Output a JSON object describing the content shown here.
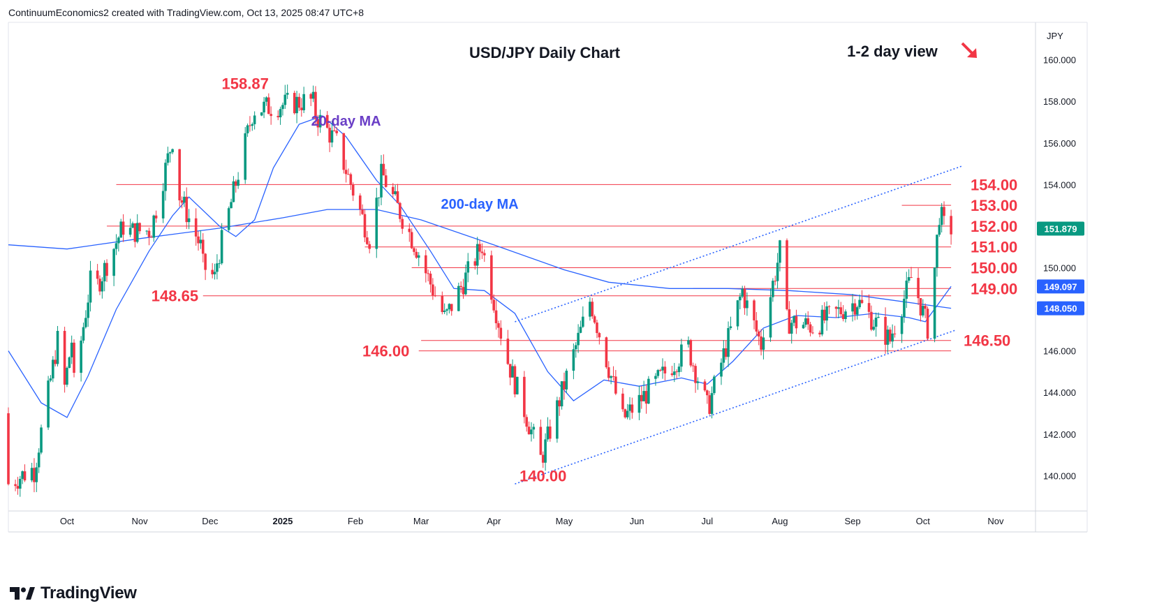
{
  "header": {
    "attribution": "ContinuumEconomics2 created with TradingView.com, Oct 13, 2025 08:47 UTC+8"
  },
  "brand": {
    "logo_text": "TradingView",
    "logo_icon": "tradingview-logo-icon"
  },
  "chart_data": {
    "type": "candlestick",
    "title": "USD/JPY Daily Chart",
    "view_label": "1-2 day view",
    "view_direction": "down",
    "currency": "JPY",
    "ylim": [
      138.3,
      161.8
    ],
    "y_ticks": [
      "140.000",
      "142.000",
      "144.000",
      "146.000",
      "148.000",
      "150.000",
      "152.000",
      "154.000",
      "156.000",
      "158.000",
      "160.000"
    ],
    "x_range": [
      "2024-09-06",
      "2025-11-18"
    ],
    "x_ticks": [
      {
        "label": "Oct",
        "date": "2024-10-01"
      },
      {
        "label": "Nov",
        "date": "2024-11-01"
      },
      {
        "label": "Dec",
        "date": "2024-12-01"
      },
      {
        "label": "2025",
        "date": "2025-01-01",
        "bold": true
      },
      {
        "label": "Feb",
        "date": "2025-02-01"
      },
      {
        "label": "Mar",
        "date": "2025-03-01"
      },
      {
        "label": "Apr",
        "date": "2025-04-01"
      },
      {
        "label": "May",
        "date": "2025-05-01"
      },
      {
        "label": "Jun",
        "date": "2025-06-01"
      },
      {
        "label": "Jul",
        "date": "2025-07-01"
      },
      {
        "label": "Aug",
        "date": "2025-08-01"
      },
      {
        "label": "Sep",
        "date": "2025-09-01"
      },
      {
        "label": "Oct",
        "date": "2025-10-01"
      },
      {
        "label": "Nov",
        "date": "2025-11-01"
      }
    ],
    "current_price": "151.879",
    "price_tags": [
      {
        "value": "151.879",
        "y": 151.879,
        "color": "#089981"
      },
      {
        "value": "149.097",
        "y": 149.097,
        "color": "#2962ff"
      },
      {
        "value": "148.050",
        "y": 148.05,
        "color": "#2962ff"
      }
    ],
    "up_color": "#089981",
    "down_color": "#f23645",
    "ma_color": "#2962ff",
    "level_color": "#f23645",
    "label_color": "#f23645",
    "ohlc_points": [
      [
        "2024-09-06",
        143.0,
        139.6
      ],
      [
        "2024-09-16",
        140.3,
        139.6
      ],
      [
        "2024-09-27",
        146.5,
        142.0
      ],
      [
        "2024-10-03",
        146.5,
        143.7
      ],
      [
        "2024-10-11",
        149.3,
        148.4
      ],
      [
        "2024-10-25",
        152.0,
        151.7
      ],
      [
        "2024-11-05",
        151.8,
        151.4
      ],
      [
        "2024-11-15",
        156.2,
        154.3
      ],
      [
        "2024-11-27",
        151.0,
        150.2
      ],
      [
        "2024-12-03",
        149.5,
        149.8
      ],
      [
        "2024-12-19",
        157.4,
        157.6
      ],
      [
        "2025-01-10",
        158.0,
        158.4
      ],
      [
        "2025-01-14",
        157.9,
        157.5
      ],
      [
        "2025-01-24",
        156.0,
        156.0
      ],
      [
        "2025-02-07",
        151.4,
        151.3
      ],
      [
        "2025-02-12",
        154.4,
        154.6
      ],
      [
        "2025-02-28",
        150.7,
        150.6
      ],
      [
        "2025-03-11",
        147.6,
        147.5
      ],
      [
        "2025-03-27",
        151.1,
        151.0
      ],
      [
        "2025-04-04",
        146.9,
        146.5
      ],
      [
        "2025-04-21",
        140.8,
        140.7
      ],
      [
        "2025-05-12",
        148.4,
        148.5
      ],
      [
        "2025-05-26",
        142.7,
        142.7
      ],
      [
        "2025-06-23",
        146.2,
        146.1
      ],
      [
        "2025-07-01",
        143.3,
        143.1
      ],
      [
        "2025-07-16",
        148.9,
        148.8
      ],
      [
        "2025-07-24",
        146.3,
        146.6
      ],
      [
        "2025-08-01",
        150.8,
        147.5
      ],
      [
        "2025-08-14",
        147.2,
        147.1
      ],
      [
        "2025-09-03",
        148.4,
        148.4
      ],
      [
        "2025-09-17",
        146.5,
        146.6
      ],
      [
        "2025-09-26",
        149.5,
        149.7
      ],
      [
        "2025-10-03",
        147.1,
        147.0
      ],
      [
        "2025-10-06",
        150.0,
        150.1
      ],
      [
        "2025-10-08",
        152.6,
        152.7
      ],
      [
        "2025-10-10",
        152.0,
        151.2
      ],
      [
        "2025-10-13",
        151.9,
        151.88
      ]
    ],
    "moving_averages": [
      {
        "name": "20-day MA",
        "points": [
          [
            "2024-09-06",
            146.0
          ],
          [
            "2024-09-20",
            143.5
          ],
          [
            "2024-10-01",
            142.8
          ],
          [
            "2024-10-10",
            144.8
          ],
          [
            "2024-10-22",
            148.0
          ],
          [
            "2024-11-05",
            150.8
          ],
          [
            "2024-11-15",
            152.5
          ],
          [
            "2024-11-22",
            153.4
          ],
          [
            "2024-12-05",
            152.0
          ],
          [
            "2024-12-12",
            151.5
          ],
          [
            "2024-12-20",
            152.3
          ],
          [
            "2024-12-28",
            154.8
          ],
          [
            "2025-01-08",
            156.9
          ],
          [
            "2025-01-18",
            157.3
          ],
          [
            "2025-01-28",
            156.3
          ],
          [
            "2025-02-10",
            154.2
          ],
          [
            "2025-02-20",
            153.0
          ],
          [
            "2025-03-05",
            150.8
          ],
          [
            "2025-03-15",
            149.0
          ],
          [
            "2025-03-28",
            148.9
          ],
          [
            "2025-04-10",
            147.8
          ],
          [
            "2025-04-24",
            145.0
          ],
          [
            "2025-05-05",
            143.6
          ],
          [
            "2025-05-18",
            144.6
          ],
          [
            "2025-06-02",
            144.3
          ],
          [
            "2025-06-20",
            144.7
          ],
          [
            "2025-07-01",
            144.4
          ],
          [
            "2025-07-12",
            145.5
          ],
          [
            "2025-07-25",
            147.1
          ],
          [
            "2025-08-08",
            147.7
          ],
          [
            "2025-08-25",
            147.6
          ],
          [
            "2025-09-10",
            147.8
          ],
          [
            "2025-09-25",
            147.6
          ],
          [
            "2025-10-02",
            147.4
          ],
          [
            "2025-10-13",
            149.1
          ]
        ]
      },
      {
        "name": "200-day MA",
        "points": [
          [
            "2024-09-06",
            151.1
          ],
          [
            "2024-10-01",
            150.9
          ],
          [
            "2024-11-01",
            151.4
          ],
          [
            "2024-12-05",
            151.9
          ],
          [
            "2025-01-01",
            152.4
          ],
          [
            "2025-01-20",
            152.8
          ],
          [
            "2025-02-10",
            152.8
          ],
          [
            "2025-03-01",
            152.3
          ],
          [
            "2025-04-01",
            151.1
          ],
          [
            "2025-05-01",
            149.9
          ],
          [
            "2025-05-20",
            149.3
          ],
          [
            "2025-06-15",
            149.0
          ],
          [
            "2025-07-10",
            149.0
          ],
          [
            "2025-08-05",
            148.9
          ],
          [
            "2025-09-01",
            148.7
          ],
          [
            "2025-10-13",
            148.05
          ]
        ]
      }
    ],
    "levels": [
      {
        "value": 154.0,
        "label": "154.00",
        "from": "2024-10-22",
        "to": "2025-10-13"
      },
      {
        "value": 153.0,
        "label": "153.00",
        "from": "2025-09-22",
        "to": "2025-10-13"
      },
      {
        "value": 152.0,
        "label": "152.00",
        "from": "2024-10-18",
        "to": "2025-10-13"
      },
      {
        "value": 151.0,
        "label": "151.00",
        "from": "2025-02-05",
        "to": "2025-10-13"
      },
      {
        "value": 150.0,
        "label": "150.00",
        "from": "2025-02-25",
        "to": "2025-10-13"
      },
      {
        "value": 149.0,
        "label": "149.00",
        "from": "2025-06-25",
        "to": "2025-10-13"
      },
      {
        "value": 148.65,
        "label": "148.65",
        "from": "2024-11-28",
        "to": "2025-10-13"
      },
      {
        "value": 146.5,
        "label": "146.50",
        "from": "2025-03-01",
        "to": "2025-10-13"
      },
      {
        "value": 146.0,
        "label": "146.00",
        "from": "2025-02-28",
        "to": "2025-10-13"
      }
    ],
    "trend_lines": [
      {
        "name": "lower channel",
        "from": [
          "2025-04-10",
          139.6
        ],
        "to": [
          "2025-10-15",
          147.0
        ]
      },
      {
        "name": "upper channel",
        "from": [
          "2025-04-10",
          147.4
        ],
        "to": [
          "2025-10-18",
          154.9
        ]
      }
    ],
    "annotations": [
      {
        "text": "158.87",
        "x": "2024-12-16",
        "y": 158.87,
        "kind": "price"
      },
      {
        "text": "148.65",
        "x": "2024-11-16",
        "y": 148.65,
        "kind": "price"
      },
      {
        "text": "146.00",
        "x": "2025-02-14",
        "y": 146.0,
        "kind": "price"
      },
      {
        "text": "140.00",
        "x": "2025-04-22",
        "y": 140.0,
        "kind": "price"
      },
      {
        "text": "20-day MA",
        "x": "2025-01-28",
        "y": 157.1,
        "kind": "ma",
        "color": "#6a3ec6"
      },
      {
        "text": "200-day MA",
        "x": "2025-03-26",
        "y": 153.1,
        "kind": "ma",
        "color": "#2962ff"
      }
    ]
  }
}
